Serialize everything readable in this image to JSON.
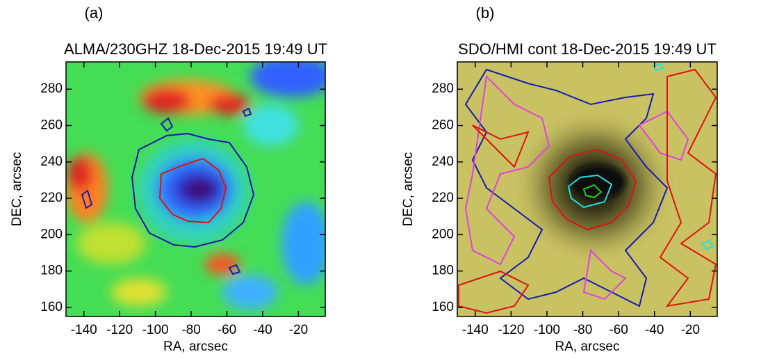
{
  "chart_data": [
    {
      "type": "image",
      "panel_label": "(a)",
      "title": "ALMA/230GHZ 18-Dec-2015 19:49 UT",
      "x_label": "RA, arcsec",
      "y_label": "DEC, arcsec",
      "xlim": [
        -150,
        -5
      ],
      "ylim": [
        155,
        295
      ],
      "xticks": [
        -140,
        -120,
        -100,
        -80,
        -60,
        -40,
        -20
      ],
      "yticks": [
        160,
        180,
        200,
        220,
        240,
        260,
        280
      ]
    },
    {
      "type": "image",
      "panel_label": "(b)",
      "title": "SDO/HMI cont 18-Dec-2015 19:49 UT",
      "x_label": "RA, arcsec",
      "y_label": "DEC, arcsec",
      "xlim": [
        -150,
        -5
      ],
      "ylim": [
        155,
        295
      ],
      "xticks": [
        -140,
        -120,
        -100,
        -80,
        -60,
        -40,
        -20
      ],
      "yticks": [
        160,
        180,
        200,
        220,
        240,
        260,
        280
      ]
    }
  ]
}
